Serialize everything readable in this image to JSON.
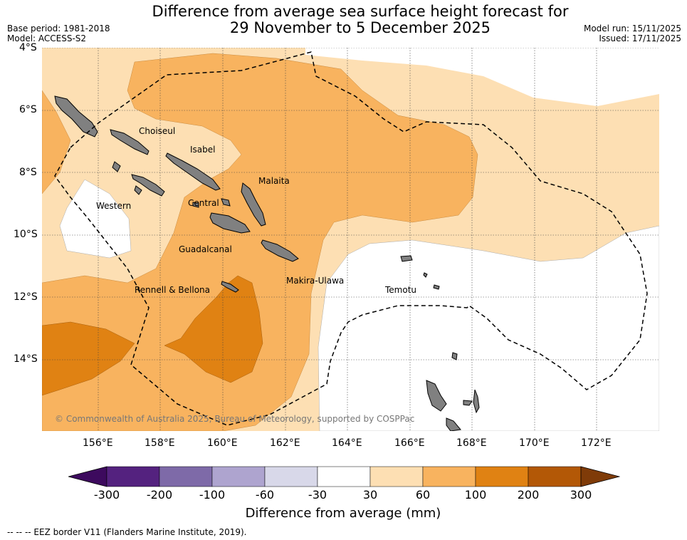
{
  "title_line1": "Difference from average sea surface height forecast for",
  "title_line2": "29 November to 5 December 2025",
  "base_period": "Base period: 1981-2018",
  "model": "Model: ACCESS-S2",
  "model_run": "Model run: 15/11/2025",
  "issued": "Issued: 17/11/2025",
  "lat_labels": [
    "4°S",
    "6°S",
    "8°S",
    "10°S",
    "12°S",
    "14°S"
  ],
  "lon_labels": [
    "156°E",
    "158°E",
    "160°E",
    "162°E",
    "164°E",
    "166°E",
    "168°E",
    "170°E",
    "172°E"
  ],
  "regions": {
    "choiseul": "Choiseul",
    "isabel": "Isabel",
    "malaita": "Malaita",
    "western": "Western",
    "central": "Central",
    "guadalcanal": "Guadalcanal",
    "makira": "Makira-Ulawa",
    "rennell": "Rennell & Bellona",
    "temotu": "Temotu"
  },
  "copyright": "© Commonwealth of Australia 2025, Bureau of Meteorology, supported by COSPPac",
  "colorbar": {
    "title": "Difference from average (mm)",
    "labels": [
      "-300",
      "-200",
      "-100",
      "-60",
      "-30",
      "30",
      "60",
      "100",
      "200",
      "300"
    ],
    "colors": [
      "#3d0a5e",
      "#54227f",
      "#7e6aa8",
      "#aea4cf",
      "#d8d8e9",
      "#ffffff",
      "#fddfb3",
      "#f8b35f",
      "#e08213",
      "#b35806",
      "#7f3b08"
    ]
  },
  "footer": "--  --  -- EEZ border V11 (Flanders Marine Institute, 2019)."
}
